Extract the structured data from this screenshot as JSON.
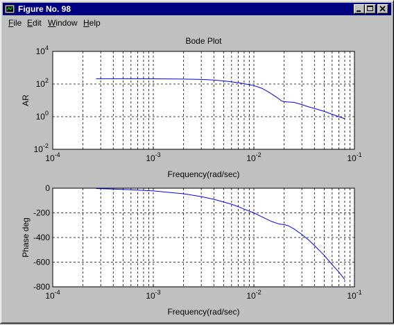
{
  "window": {
    "title": "Figure No. 98",
    "controls": [
      "minimize",
      "maximize",
      "close"
    ]
  },
  "menu": {
    "items": [
      {
        "label": "File",
        "hotkey": "F",
        "rest": "ile"
      },
      {
        "label": "Edit",
        "hotkey": "E",
        "rest": "dit"
      },
      {
        "label": "Window",
        "hotkey": "W",
        "rest": "indow"
      },
      {
        "label": "Help",
        "hotkey": "H",
        "rest": "elp"
      }
    ]
  },
  "figure": {
    "title": "Bode Plot"
  },
  "chart_data": [
    {
      "type": "line",
      "title": "Bode Plot",
      "xlabel": "Frequency(rad/sec)",
      "ylabel": "AR",
      "xscale": "log",
      "yscale": "log",
      "xlim": [
        0.0001,
        0.1
      ],
      "ylim": [
        0.01,
        10000
      ],
      "xticks": [
        {
          "base": "10",
          "exp": "-4"
        },
        {
          "base": "10",
          "exp": "-3"
        },
        {
          "base": "10",
          "exp": "-2"
        },
        {
          "base": "10",
          "exp": "-1"
        }
      ],
      "yticks": [
        {
          "base": "10",
          "exp": "-2"
        },
        {
          "base": "10",
          "exp": "0"
        },
        {
          "base": "10",
          "exp": "2"
        },
        {
          "base": "10",
          "exp": "4"
        }
      ],
      "grid": true,
      "line_color": "#0000ff",
      "x": [
        0.00027,
        0.0005,
        0.001,
        0.002,
        0.003,
        0.004,
        0.005,
        0.006,
        0.007,
        0.008,
        0.01,
        0.012,
        0.014,
        0.017,
        0.019,
        0.021,
        0.025,
        0.03,
        0.035,
        0.04,
        0.05,
        0.06,
        0.07,
        0.08
      ],
      "y": [
        210,
        210,
        208,
        200,
        190,
        175,
        155,
        135,
        120,
        105,
        80,
        55,
        32,
        15,
        9,
        8,
        7.5,
        5.5,
        4,
        3.2,
        2.1,
        1.4,
        1.0,
        0.75
      ]
    },
    {
      "type": "line",
      "title": "",
      "xlabel": "Frequency(rad/sec)",
      "ylabel": "Phase deg",
      "xscale": "log",
      "yscale": "linear",
      "xlim": [
        0.0001,
        0.1
      ],
      "ylim": [
        -800,
        0
      ],
      "xticks": [
        {
          "base": "10",
          "exp": "-4"
        },
        {
          "base": "10",
          "exp": "-3"
        },
        {
          "base": "10",
          "exp": "-2"
        },
        {
          "base": "10",
          "exp": "-1"
        }
      ],
      "yticks": [
        "-800",
        "-600",
        "-400",
        "-200",
        "0"
      ],
      "ytick_values": [
        -800,
        -600,
        -400,
        -200,
        0
      ],
      "grid": true,
      "line_color": "#0000ff",
      "x": [
        0.00027,
        0.0005,
        0.001,
        0.002,
        0.003,
        0.004,
        0.005,
        0.006,
        0.007,
        0.008,
        0.01,
        0.012,
        0.015,
        0.018,
        0.02,
        0.022,
        0.025,
        0.03,
        0.035,
        0.04,
        0.05,
        0.06,
        0.07,
        0.08
      ],
      "y": [
        -3,
        -10,
        -22,
        -45,
        -68,
        -90,
        -112,
        -130,
        -150,
        -170,
        -200,
        -232,
        -270,
        -292,
        -295,
        -305,
        -330,
        -375,
        -420,
        -465,
        -545,
        -620,
        -680,
        -740
      ]
    }
  ]
}
